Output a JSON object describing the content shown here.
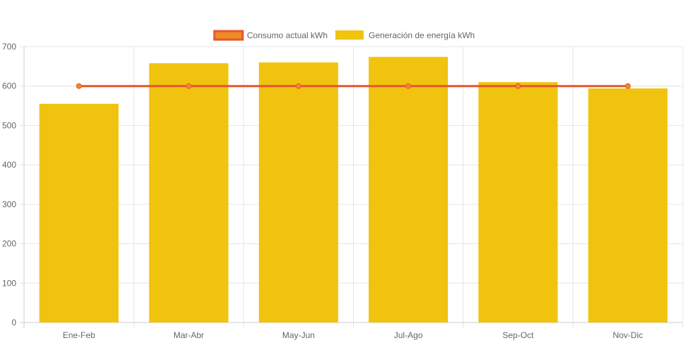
{
  "chart_data": {
    "type": "bar",
    "categories": [
      "Ene-Feb",
      "Mar-Abr",
      "May-Jun",
      "Jul-Ago",
      "Sep-Oct",
      "Nov-Dic"
    ],
    "series": [
      {
        "name": "Consumo actual kWh",
        "type": "line",
        "values": [
          600,
          600,
          600,
          600,
          600,
          600
        ],
        "color": "#e4572e",
        "fill": "#f08a24"
      },
      {
        "name": "Generación de energía kWh",
        "type": "bar",
        "values": [
          555,
          658,
          660,
          674,
          610,
          594
        ],
        "color": "#f0c30f"
      }
    ],
    "ylim": [
      0,
      700
    ],
    "yticks": [
      "0",
      "100",
      "200",
      "300",
      "400",
      "500",
      "600",
      "700"
    ],
    "legend_position": "top-center",
    "grid": true
  }
}
